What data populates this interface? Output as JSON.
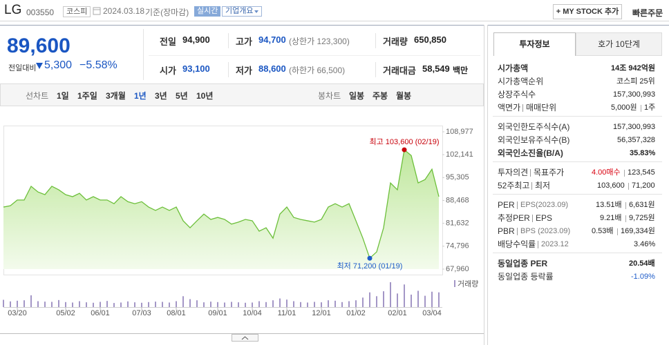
{
  "header": {
    "name": "LG",
    "code": "003550",
    "market": "코스피",
    "date": "2024.03.18",
    "basis": "기준(장마감)",
    "realtime": "실시간",
    "overview": "기업개요",
    "mystock": "+ MY STOCK 추가",
    "quick_order": "빠른주문"
  },
  "quote": {
    "price": "89,600",
    "change_label": "전일대비",
    "change": "5,300",
    "change_pct": "−5.58%",
    "stats": [
      {
        "label": "전일",
        "value": "94,900"
      },
      {
        "label": "고가",
        "value": "94,700",
        "note": "(상한가 123,300)",
        "color": "#1a56c2"
      },
      {
        "label": "거래량",
        "value": "650,850"
      },
      {
        "label": "시가",
        "value": "93,100",
        "color": "#1a56c2"
      },
      {
        "label": "저가",
        "value": "88,600",
        "note": "(하한가 66,500)",
        "color": "#1a56c2"
      },
      {
        "label": "거래대금",
        "value": "58,549",
        "note": "백만"
      }
    ]
  },
  "tabs": {
    "line_label": "선차트",
    "line": [
      "1일",
      "1주일",
      "3개월",
      "1년",
      "3년",
      "5년",
      "10년"
    ],
    "selected": 3,
    "candle_label": "봉차트",
    "candle": [
      "일봉",
      "주봉",
      "월봉"
    ]
  },
  "info": {
    "tabs": [
      "투자정보",
      "호가 10단계"
    ],
    "groups": [
      [
        {
          "label": [
            "시가총액"
          ],
          "value": [
            "14조 942억원"
          ],
          "bold": true
        },
        {
          "label": [
            "시가총액순위"
          ],
          "value": [
            "코스피 25위"
          ]
        },
        {
          "label": [
            "상장주식수"
          ],
          "value": [
            "157,300,993"
          ]
        },
        {
          "label": [
            "액면가",
            "매매단위"
          ],
          "value": [
            "5,000원",
            "1주"
          ]
        }
      ],
      [
        {
          "label": [
            "외국인한도주식수(A)"
          ],
          "value": [
            "157,300,993"
          ]
        },
        {
          "label": [
            "외국인보유주식수(B)"
          ],
          "value": [
            "56,357,328"
          ]
        },
        {
          "label": [
            "외국인소진율(B/A)"
          ],
          "value": [
            "35.83%"
          ],
          "bold": true
        }
      ],
      [
        {
          "label": [
            "투자의견",
            "목표주가"
          ],
          "value": [
            "4.00매수",
            "123,545"
          ],
          "color": "#d9000f"
        },
        {
          "label": [
            "52주최고",
            "최저"
          ],
          "value": [
            "103,600",
            "71,200"
          ]
        }
      ],
      [
        {
          "label": [
            "PER",
            "EPS(2023.09)"
          ],
          "value": [
            "13.51배",
            "6,631원"
          ]
        },
        {
          "label": [
            "추정PER",
            "EPS"
          ],
          "value": [
            "9.21배",
            "9,725원"
          ]
        },
        {
          "label": [
            "PBR",
            "BPS (2023.09)"
          ],
          "value": [
            "0.53배",
            "169,334원"
          ]
        },
        {
          "label": [
            "배당수익률",
            "2023.12"
          ],
          "value": [
            "3.46%"
          ]
        }
      ],
      [
        {
          "label": [
            "동일업종 PER"
          ],
          "value": [
            "20.54배"
          ],
          "bold": true
        },
        {
          "label": [
            "동일업종 등락률"
          ],
          "value": [
            "-1.09%"
          ],
          "color": "#1d5bc9"
        }
      ]
    ]
  },
  "chart_data": {
    "type": "line",
    "categories": [
      null,
      null,
      "03/20",
      null,
      null,
      null,
      null,
      null,
      null,
      "05/02",
      null,
      null,
      null,
      null,
      "06/01",
      null,
      null,
      null,
      null,
      null,
      "07/03",
      null,
      null,
      null,
      null,
      "08/01",
      null,
      null,
      null,
      null,
      null,
      "09/01",
      null,
      null,
      null,
      null,
      "10/04",
      null,
      null,
      null,
      null,
      "11/01",
      null,
      null,
      null,
      null,
      "12/01",
      null,
      null,
      null,
      null,
      "01/02",
      null,
      null,
      null,
      null,
      null,
      "02/01",
      null,
      null,
      null,
      null,
      "03/04",
      null
    ],
    "series": [
      {
        "color": "#6cbf3a",
        "values": [
          86500,
          86900,
          88600,
          88600,
          92700,
          91000,
          90200,
          92700,
          91650,
          90200,
          89600,
          90600,
          88600,
          89600,
          88600,
          88600,
          87500,
          89600,
          88100,
          87500,
          88100,
          86500,
          85500,
          86500,
          85500,
          86500,
          82400,
          80300,
          82400,
          84400,
          82800,
          83400,
          82800,
          81400,
          82000,
          82800,
          82400,
          79300,
          80300,
          77200,
          84400,
          86500,
          83400,
          82800,
          82400,
          82000,
          82800,
          86500,
          87500,
          86500,
          87500,
          82400,
          77200,
          71200,
          73100,
          80300,
          93700,
          91650,
          103600,
          101900,
          93700,
          94700,
          97800,
          89600
        ]
      }
    ],
    "volume": {
      "name": "거래량",
      "color": "#a396c6",
      "values": [
        320000,
        250000,
        280000,
        300000,
        520000,
        260000,
        240000,
        230000,
        310000,
        220000,
        200000,
        260000,
        210000,
        190000,
        230000,
        270000,
        180000,
        200000,
        250000,
        210000,
        190000,
        220000,
        240000,
        230000,
        200000,
        260000,
        480000,
        350000,
        300000,
        210000,
        240000,
        220000,
        200000,
        230000,
        210000,
        190000,
        200000,
        260000,
        220000,
        300000,
        380000,
        330000,
        260000,
        220000,
        200000,
        230000,
        210000,
        300000,
        280000,
        220000,
        260000,
        300000,
        420000,
        650000,
        480000,
        700000,
        1100000,
        600000,
        1000000,
        550000,
        720000,
        500000,
        680000,
        650850
      ]
    },
    "ylim": [
      67960,
      108977
    ],
    "yticks": [
      {
        "value": 67960,
        "label": "67,960"
      },
      {
        "value": 74796,
        "label": "74,796"
      },
      {
        "value": 81632,
        "label": "81,632"
      },
      {
        "value": 88468,
        "label": "88,468"
      },
      {
        "value": 95305,
        "label": "95,305"
      },
      {
        "value": 102141,
        "label": "102,141"
      },
      {
        "value": 108977,
        "label": "108,977"
      }
    ],
    "grid": false,
    "annotations": [
      {
        "text": "최고 103,600 (02/19)",
        "index": 58,
        "color": "#c8000a",
        "position": "above"
      },
      {
        "text": "최저 71,200 (01/19)",
        "index": 53,
        "color": "#1d5bc9",
        "position": "below"
      }
    ]
  }
}
